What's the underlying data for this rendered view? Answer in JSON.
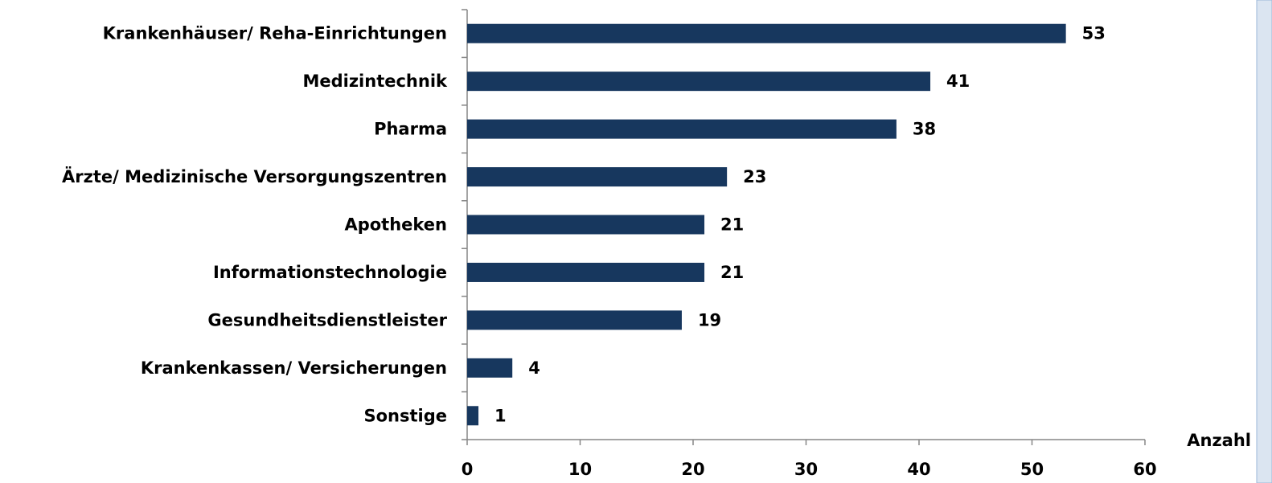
{
  "chart_data": {
    "type": "bar",
    "orientation": "horizontal",
    "categories": [
      "Krankenhäuser/ Reha-Einrichtungen",
      "Medizintechnik",
      "Pharma",
      "Ärzte/ Medizinische Versorgungszentren",
      "Apotheken",
      "Informationstechnologie",
      "Gesundheitsdienstleister",
      "Krankenkassen/ Versicherungen",
      "Sonstige"
    ],
    "values": [
      53,
      41,
      38,
      23,
      21,
      21,
      19,
      4,
      1
    ],
    "color": "#17375e",
    "x_label": "Anzahl",
    "xlim": [
      0,
      60
    ],
    "xticks": [
      0,
      10,
      20,
      30,
      40,
      50,
      60
    ],
    "grid": false
  }
}
